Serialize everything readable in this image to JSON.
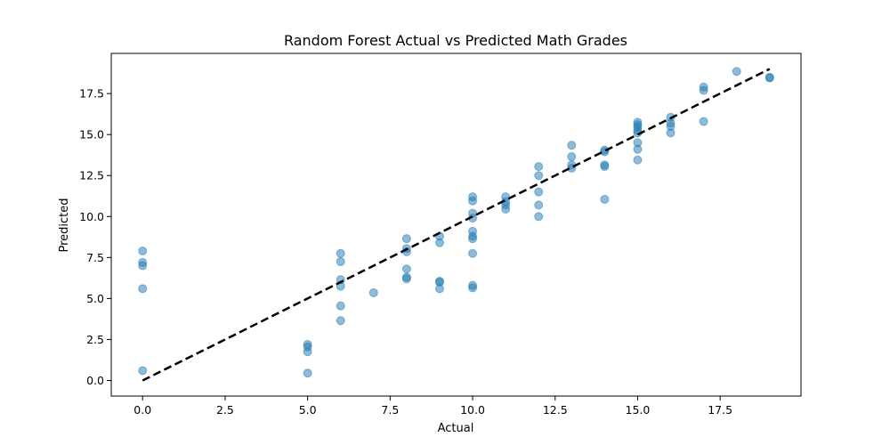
{
  "chart_data": {
    "type": "scatter",
    "title": "Random Forest Actual vs Predicted Math Grades",
    "xlabel": "Actual",
    "ylabel": "Predicted",
    "xlim": [
      -0.95,
      19.95
    ],
    "ylim": [
      -0.95,
      19.95
    ],
    "xticks": [
      0.0,
      2.5,
      5.0,
      7.5,
      10.0,
      12.5,
      15.0,
      17.5
    ],
    "yticks": [
      0.0,
      2.5,
      5.0,
      7.5,
      10.0,
      12.5,
      15.0,
      17.5
    ],
    "tick_labels_x": [
      "0.0",
      "2.5",
      "5.0",
      "7.5",
      "10.0",
      "12.5",
      "15.0",
      "17.5"
    ],
    "tick_labels_y": [
      "0.0",
      "2.5",
      "5.0",
      "7.5",
      "10.0",
      "12.5",
      "15.0",
      "17.5"
    ],
    "grid": false,
    "marker_color": "#1f77b4",
    "marker_alpha": 0.5,
    "reference_line": {
      "from": [
        0,
        0
      ],
      "to": [
        19,
        19
      ],
      "style": "dashed",
      "color": "#000000"
    },
    "points": [
      {
        "x": 0,
        "y": 7.9
      },
      {
        "x": 0,
        "y": 7.2
      },
      {
        "x": 0,
        "y": 7.0
      },
      {
        "x": 0,
        "y": 5.6
      },
      {
        "x": 0,
        "y": 0.6
      },
      {
        "x": 5,
        "y": 2.2
      },
      {
        "x": 5,
        "y": 2.05
      },
      {
        "x": 5,
        "y": 1.75
      },
      {
        "x": 5,
        "y": 0.45
      },
      {
        "x": 6,
        "y": 7.75
      },
      {
        "x": 6,
        "y": 7.25
      },
      {
        "x": 6,
        "y": 6.15
      },
      {
        "x": 6,
        "y": 5.75
      },
      {
        "x": 6,
        "y": 4.55
      },
      {
        "x": 6,
        "y": 3.65
      },
      {
        "x": 7,
        "y": 5.35
      },
      {
        "x": 8,
        "y": 8.65
      },
      {
        "x": 8,
        "y": 8.05
      },
      {
        "x": 8,
        "y": 7.85
      },
      {
        "x": 8,
        "y": 6.8
      },
      {
        "x": 8,
        "y": 6.3
      },
      {
        "x": 8,
        "y": 6.2
      },
      {
        "x": 9,
        "y": 8.8
      },
      {
        "x": 9,
        "y": 8.4
      },
      {
        "x": 9,
        "y": 6.05
      },
      {
        "x": 9,
        "y": 6.0
      },
      {
        "x": 9,
        "y": 5.6
      },
      {
        "x": 10,
        "y": 11.2
      },
      {
        "x": 10,
        "y": 10.95
      },
      {
        "x": 10,
        "y": 10.2
      },
      {
        "x": 10,
        "y": 9.9
      },
      {
        "x": 10,
        "y": 9.1
      },
      {
        "x": 10,
        "y": 8.8
      },
      {
        "x": 10,
        "y": 8.65
      },
      {
        "x": 10,
        "y": 7.75
      },
      {
        "x": 10,
        "y": 5.8
      },
      {
        "x": 10,
        "y": 5.65
      },
      {
        "x": 11,
        "y": 11.2
      },
      {
        "x": 11,
        "y": 10.9
      },
      {
        "x": 11,
        "y": 10.7
      },
      {
        "x": 11,
        "y": 10.45
      },
      {
        "x": 12,
        "y": 13.05
      },
      {
        "x": 12,
        "y": 12.5
      },
      {
        "x": 12,
        "y": 11.5
      },
      {
        "x": 12,
        "y": 10.7
      },
      {
        "x": 12,
        "y": 10.0
      },
      {
        "x": 13,
        "y": 14.35
      },
      {
        "x": 13,
        "y": 13.65
      },
      {
        "x": 13,
        "y": 13.15
      },
      {
        "x": 13,
        "y": 12.95
      },
      {
        "x": 14,
        "y": 14.05
      },
      {
        "x": 14,
        "y": 13.95
      },
      {
        "x": 14,
        "y": 13.15
      },
      {
        "x": 14,
        "y": 13.05
      },
      {
        "x": 14,
        "y": 11.05
      },
      {
        "x": 15,
        "y": 15.75
      },
      {
        "x": 15,
        "y": 15.6
      },
      {
        "x": 15,
        "y": 15.45
      },
      {
        "x": 15,
        "y": 15.25
      },
      {
        "x": 15,
        "y": 15.1
      },
      {
        "x": 15,
        "y": 14.5
      },
      {
        "x": 15,
        "y": 14.1
      },
      {
        "x": 15,
        "y": 13.45
      },
      {
        "x": 16,
        "y": 16.05
      },
      {
        "x": 16,
        "y": 15.7
      },
      {
        "x": 16,
        "y": 15.5
      },
      {
        "x": 16,
        "y": 15.1
      },
      {
        "x": 17,
        "y": 17.9
      },
      {
        "x": 17,
        "y": 17.7
      },
      {
        "x": 17,
        "y": 15.8
      },
      {
        "x": 18,
        "y": 18.85
      },
      {
        "x": 19,
        "y": 18.5
      },
      {
        "x": 19,
        "y": 18.45
      }
    ]
  }
}
